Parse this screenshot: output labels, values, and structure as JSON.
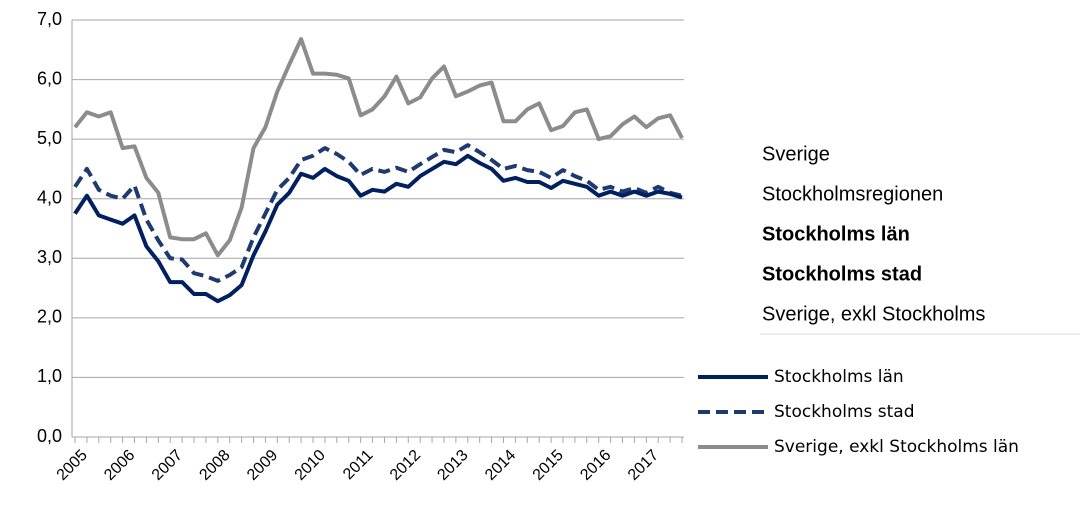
{
  "chart_data": {
    "type": "line",
    "categories": [
      "2005",
      null,
      null,
      null,
      "2006",
      null,
      null,
      null,
      "2007",
      null,
      null,
      null,
      "2008",
      null,
      null,
      null,
      "2009",
      null,
      null,
      null,
      "2010",
      null,
      null,
      null,
      "2011",
      null,
      null,
      null,
      "2012",
      null,
      null,
      null,
      "2013",
      null,
      null,
      null,
      "2014",
      null,
      null,
      null,
      "2015",
      null,
      null,
      null,
      "2016",
      null,
      null,
      null,
      "2017",
      null,
      null,
      null
    ],
    "series": [
      {
        "name": "Stockholms län",
        "color": "#002060",
        "dash": false,
        "values": [
          3.75,
          4.05,
          3.72,
          3.65,
          3.58,
          3.72,
          3.2,
          2.95,
          2.6,
          2.6,
          2.4,
          2.4,
          2.28,
          2.38,
          2.55,
          3.05,
          3.45,
          3.9,
          4.1,
          4.42,
          4.35,
          4.5,
          4.38,
          4.3,
          4.05,
          4.15,
          4.12,
          4.25,
          4.2,
          4.38,
          4.5,
          4.62,
          4.58,
          4.72,
          4.6,
          4.5,
          4.3,
          4.35,
          4.28,
          4.28,
          4.18,
          4.3,
          4.25,
          4.2,
          4.05,
          4.12,
          4.05,
          4.12,
          4.05,
          4.12,
          4.08,
          4.02
        ]
      },
      {
        "name": "Stockholms stad",
        "color": "#1f3a6e",
        "dash": true,
        "values": [
          4.2,
          4.5,
          4.15,
          4.05,
          4.0,
          4.22,
          3.65,
          3.3,
          3.0,
          2.98,
          2.75,
          2.7,
          2.62,
          2.72,
          2.85,
          3.35,
          3.75,
          4.15,
          4.35,
          4.65,
          4.72,
          4.85,
          4.75,
          4.62,
          4.4,
          4.5,
          4.45,
          4.52,
          4.45,
          4.58,
          4.7,
          4.82,
          4.78,
          4.9,
          4.78,
          4.65,
          4.5,
          4.55,
          4.48,
          4.45,
          4.35,
          4.48,
          4.38,
          4.3,
          4.15,
          4.2,
          4.12,
          4.18,
          4.1,
          4.2,
          4.1,
          4.05
        ]
      },
      {
        "name": "Sverige, exkl Stockholms län",
        "color": "#8c8c8c",
        "dash": false,
        "values": [
          5.2,
          5.45,
          5.38,
          5.45,
          4.85,
          4.88,
          4.35,
          4.1,
          3.35,
          3.32,
          3.32,
          3.42,
          3.05,
          3.3,
          3.85,
          4.85,
          5.2,
          5.8,
          6.25,
          6.68,
          6.1,
          6.1,
          6.08,
          6.02,
          5.4,
          5.5,
          5.72,
          6.05,
          5.6,
          5.7,
          6.02,
          6.22,
          5.72,
          5.8,
          5.9,
          5.95,
          5.3,
          5.3,
          5.5,
          5.6,
          5.15,
          5.22,
          5.45,
          5.5,
          5.0,
          5.05,
          5.25,
          5.38,
          5.2,
          5.35,
          5.4,
          5.02
        ]
      }
    ],
    "ylim": [
      0,
      7
    ],
    "yticks": [
      {
        "value": 0,
        "label": "0,0"
      },
      {
        "value": 1,
        "label": "1,0"
      },
      {
        "value": 2,
        "label": "2,0"
      },
      {
        "value": 3,
        "label": "3,0"
      },
      {
        "value": 4,
        "label": "4,0"
      },
      {
        "value": 5,
        "label": "5,0"
      },
      {
        "value": 6,
        "label": "6,0"
      },
      {
        "value": 7,
        "label": "7,0"
      }
    ],
    "grid": true,
    "side_labels": [
      {
        "text": "Sverige",
        "bold": false
      },
      {
        "text": "Stockholmsregionen",
        "bold": false
      },
      {
        "text": "Stockholms län",
        "bold": true
      },
      {
        "text": "Stockholms stad",
        "bold": true
      },
      {
        "text": "Sverige, exkl Stockholms",
        "bold": false
      }
    ]
  }
}
